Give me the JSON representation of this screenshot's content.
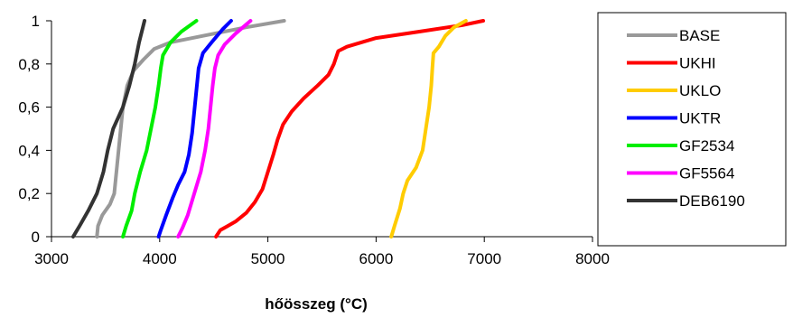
{
  "chart_data": {
    "type": "line",
    "title": "",
    "xlabel": "hőösszeg (°C)",
    "ylabel": "",
    "xlim": [
      3000,
      8000
    ],
    "ylim": [
      0,
      1
    ],
    "xticks": [
      3000,
      4000,
      5000,
      6000,
      7000,
      8000
    ],
    "xtick_labels": [
      "3000",
      "4000",
      "5000",
      "6000",
      "7000",
      "8000"
    ],
    "yticks": [
      0,
      0.2,
      0.4,
      0.6,
      0.8,
      1
    ],
    "ytick_labels": [
      "0",
      "0,2",
      "0,4",
      "0,6",
      "0,8",
      "1"
    ],
    "grid": false,
    "legend": "right",
    "series": [
      {
        "name": "BASE",
        "color": "#999999",
        "points": [
          [
            3420,
            0
          ],
          [
            3430,
            0.05
          ],
          [
            3470,
            0.1
          ],
          [
            3540,
            0.15
          ],
          [
            3580,
            0.2
          ],
          [
            3600,
            0.3
          ],
          [
            3620,
            0.4
          ],
          [
            3640,
            0.5
          ],
          [
            3660,
            0.6
          ],
          [
            3700,
            0.7
          ],
          [
            3760,
            0.77
          ],
          [
            3850,
            0.82
          ],
          [
            3950,
            0.87
          ],
          [
            4100,
            0.9
          ],
          [
            4400,
            0.93
          ],
          [
            4800,
            0.97
          ],
          [
            5150,
            1
          ]
        ]
      },
      {
        "name": "UKHI",
        "color": "#ff0000",
        "points": [
          [
            4520,
            0
          ],
          [
            4560,
            0.03
          ],
          [
            4700,
            0.07
          ],
          [
            4800,
            0.11
          ],
          [
            4880,
            0.16
          ],
          [
            4950,
            0.22
          ],
          [
            5000,
            0.3
          ],
          [
            5050,
            0.38
          ],
          [
            5090,
            0.45
          ],
          [
            5140,
            0.52
          ],
          [
            5220,
            0.58
          ],
          [
            5330,
            0.64
          ],
          [
            5460,
            0.7
          ],
          [
            5560,
            0.75
          ],
          [
            5610,
            0.8
          ],
          [
            5650,
            0.86
          ],
          [
            5730,
            0.88
          ],
          [
            6000,
            0.92
          ],
          [
            6400,
            0.95
          ],
          [
            6800,
            0.98
          ],
          [
            6990,
            1
          ]
        ]
      },
      {
        "name": "UKLO",
        "color": "#ffcc00",
        "points": [
          [
            6140,
            0
          ],
          [
            6170,
            0.05
          ],
          [
            6220,
            0.13
          ],
          [
            6250,
            0.2
          ],
          [
            6290,
            0.26
          ],
          [
            6370,
            0.32
          ],
          [
            6430,
            0.4
          ],
          [
            6460,
            0.5
          ],
          [
            6490,
            0.6
          ],
          [
            6510,
            0.7
          ],
          [
            6520,
            0.78
          ],
          [
            6530,
            0.85
          ],
          [
            6580,
            0.88
          ],
          [
            6640,
            0.93
          ],
          [
            6720,
            0.97
          ],
          [
            6830,
            1
          ]
        ]
      },
      {
        "name": "UKTR",
        "color": "#0000ff",
        "points": [
          [
            3990,
            0
          ],
          [
            4010,
            0.03
          ],
          [
            4060,
            0.1
          ],
          [
            4120,
            0.18
          ],
          [
            4170,
            0.24
          ],
          [
            4230,
            0.3
          ],
          [
            4270,
            0.38
          ],
          [
            4300,
            0.48
          ],
          [
            4320,
            0.58
          ],
          [
            4340,
            0.68
          ],
          [
            4360,
            0.78
          ],
          [
            4400,
            0.85
          ],
          [
            4480,
            0.9
          ],
          [
            4580,
            0.96
          ],
          [
            4660,
            1
          ]
        ]
      },
      {
        "name": "GF2534",
        "color": "#00ee00",
        "points": [
          [
            3660,
            0
          ],
          [
            3690,
            0.05
          ],
          [
            3740,
            0.12
          ],
          [
            3770,
            0.2
          ],
          [
            3820,
            0.3
          ],
          [
            3880,
            0.4
          ],
          [
            3920,
            0.5
          ],
          [
            3960,
            0.6
          ],
          [
            3990,
            0.7
          ],
          [
            4010,
            0.78
          ],
          [
            4030,
            0.84
          ],
          [
            4100,
            0.9
          ],
          [
            4200,
            0.95
          ],
          [
            4340,
            1
          ]
        ]
      },
      {
        "name": "GF5564",
        "color": "#ff00ff",
        "points": [
          [
            4170,
            0
          ],
          [
            4210,
            0.04
          ],
          [
            4260,
            0.1
          ],
          [
            4320,
            0.2
          ],
          [
            4380,
            0.3
          ],
          [
            4420,
            0.4
          ],
          [
            4450,
            0.5
          ],
          [
            4470,
            0.6
          ],
          [
            4490,
            0.7
          ],
          [
            4510,
            0.78
          ],
          [
            4540,
            0.84
          ],
          [
            4600,
            0.89
          ],
          [
            4700,
            0.94
          ],
          [
            4840,
            1
          ]
        ]
      },
      {
        "name": "DEB6190",
        "color": "#333333",
        "points": [
          [
            3200,
            0
          ],
          [
            3260,
            0.05
          ],
          [
            3340,
            0.12
          ],
          [
            3420,
            0.2
          ],
          [
            3480,
            0.3
          ],
          [
            3520,
            0.4
          ],
          [
            3570,
            0.5
          ],
          [
            3660,
            0.6
          ],
          [
            3720,
            0.7
          ],
          [
            3770,
            0.8
          ],
          [
            3810,
            0.9
          ],
          [
            3860,
            1
          ]
        ]
      }
    ]
  }
}
